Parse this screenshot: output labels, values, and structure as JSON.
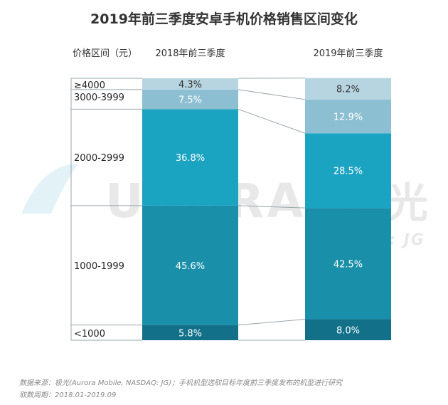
{
  "title": "2019年前三季度安卓手机价格销售区间变化",
  "header": {
    "price_range": "价格区间（元）",
    "col_2018": "2018年前三季度",
    "col_2019": "2019年前三季度"
  },
  "watermark": {
    "brand": "URORA",
    "brand_cn": "极光",
    "sub": "NASDAQ: JG"
  },
  "footer": {
    "source": "数据来源：极光(Aurora Mobile, NASDAQ: JG)；手机机型选取目标年度前三季度发布的机型进行研究",
    "period": "取数周期：2018.01-2019.09"
  },
  "colors": {
    "lt1000": "#127189",
    "1000-1999": "#1a8fa9",
    "2000-2999": "#1ba3c2",
    "3000-3999": "#8dbfd2",
    "ge4000": "#b7d5e1"
  },
  "chart_data": {
    "type": "bar",
    "stacked": true,
    "percent": true,
    "categories": [
      "2018年前三季度",
      "2019年前三季度"
    ],
    "series": [
      {
        "name": "<1000",
        "key": "lt1000",
        "values": [
          5.8,
          8.0
        ],
        "labels": [
          "5.8%",
          "8.0%"
        ]
      },
      {
        "name": "1000-1999",
        "key": "1000-1999",
        "values": [
          45.6,
          42.5
        ],
        "labels": [
          "45.6%",
          "42.5%"
        ]
      },
      {
        "name": "2000-2999",
        "key": "2000-2999",
        "values": [
          36.8,
          28.5
        ],
        "labels": [
          "36.8%",
          "28.5%"
        ]
      },
      {
        "name": "3000-3999",
        "key": "3000-3999",
        "values": [
          7.5,
          12.9
        ],
        "labels": [
          "7.5%",
          "12.9%"
        ]
      },
      {
        "name": "≥4000",
        "key": "ge4000",
        "values": [
          4.3,
          8.2
        ],
        "labels": [
          "4.3%",
          "8.2%"
        ]
      }
    ],
    "ylim": [
      0,
      100
    ],
    "xlabel": "",
    "ylabel": "价格区间（元）"
  }
}
